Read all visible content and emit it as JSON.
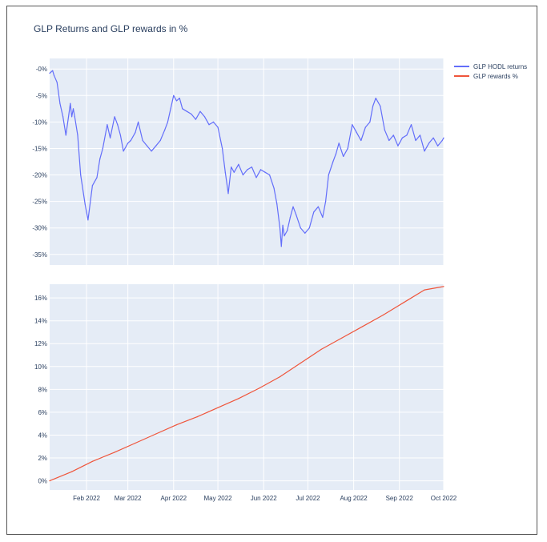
{
  "colors": {
    "background": "#ffffff",
    "plot_bg": "#e5ecf6",
    "grid": "#ffffff",
    "text": "#2a3f5f",
    "hodl_line": "#636efa",
    "rewards_line": "#ef553b"
  },
  "chart_data": {
    "type": "line",
    "title": "GLP Returns and GLP rewards in %",
    "legend_placement": "top-right",
    "grid": true,
    "x_ticks": [
      "Feb 2022",
      "Mar 2022",
      "Apr 2022",
      "May 2022",
      "Jun 2022",
      "Jul 2022",
      "Aug 2022",
      "Sep 2022",
      "Oct 2022"
    ],
    "x_range": [
      "2022-01-07",
      "2022-10-01"
    ],
    "legend": [
      {
        "label": "GLP HODL returns",
        "color": "#636efa"
      },
      {
        "label": "GLP rewards %",
        "color": "#ef553b"
      }
    ],
    "subplots": [
      {
        "name": "GLP HODL returns",
        "y_ticks": [
          "-0%",
          "-5%",
          "-10%",
          "-15%",
          "-20%",
          "-25%",
          "-30%",
          "-35%"
        ],
        "y_tick_values": [
          0,
          -5,
          -10,
          -15,
          -20,
          -25,
          -30,
          -35
        ],
        "ylim": [
          -37,
          2
        ],
        "series": [
          {
            "name": "GLP HODL returns",
            "color": "#636efa",
            "x": [
              "2022-01-07",
              "2022-01-09",
              "2022-01-10",
              "2022-01-12",
              "2022-01-14",
              "2022-01-16",
              "2022-01-18",
              "2022-01-20",
              "2022-01-21",
              "2022-01-22",
              "2022-01-23",
              "2022-01-24",
              "2022-01-26",
              "2022-01-28",
              "2022-01-31",
              "2022-02-02",
              "2022-02-05",
              "2022-02-08",
              "2022-02-10",
              "2022-02-12",
              "2022-02-15",
              "2022-02-17",
              "2022-02-20",
              "2022-02-22",
              "2022-02-24",
              "2022-02-26",
              "2022-03-01",
              "2022-03-03",
              "2022-03-06",
              "2022-03-08",
              "2022-03-11",
              "2022-03-14",
              "2022-03-17",
              "2022-03-20",
              "2022-03-23",
              "2022-03-26",
              "2022-03-28",
              "2022-03-30",
              "2022-04-01",
              "2022-04-03",
              "2022-04-05",
              "2022-04-07",
              "2022-04-10",
              "2022-04-13",
              "2022-04-16",
              "2022-04-19",
              "2022-04-22",
              "2022-04-25",
              "2022-04-28",
              "2022-05-01",
              "2022-05-04",
              "2022-05-06",
              "2022-05-08",
              "2022-05-10",
              "2022-05-12",
              "2022-05-15",
              "2022-05-18",
              "2022-05-21",
              "2022-05-24",
              "2022-05-27",
              "2022-05-30",
              "2022-06-02",
              "2022-06-05",
              "2022-06-08",
              "2022-06-10",
              "2022-06-12",
              "2022-06-13",
              "2022-06-14",
              "2022-06-15",
              "2022-06-17",
              "2022-06-19",
              "2022-06-21",
              "2022-06-23",
              "2022-06-26",
              "2022-06-29",
              "2022-07-02",
              "2022-07-05",
              "2022-07-08",
              "2022-07-11",
              "2022-07-13",
              "2022-07-15",
              "2022-07-18",
              "2022-07-20",
              "2022-07-22",
              "2022-07-25",
              "2022-07-28",
              "2022-07-31",
              "2022-08-03",
              "2022-08-06",
              "2022-08-09",
              "2022-08-12",
              "2022-08-14",
              "2022-08-16",
              "2022-08-19",
              "2022-08-22",
              "2022-08-25",
              "2022-08-28",
              "2022-08-31",
              "2022-09-03",
              "2022-09-06",
              "2022-09-09",
              "2022-09-12",
              "2022-09-15",
              "2022-09-18",
              "2022-09-21",
              "2022-09-24",
              "2022-09-27",
              "2022-09-30",
              "2022-10-01"
            ],
            "values": [
              -0.8,
              -0.3,
              -1.2,
              -2.5,
              -6.5,
              -9.0,
              -12.5,
              -8.5,
              -6.5,
              -9.0,
              -7.5,
              -9.0,
              -12.5,
              -20.0,
              -25.5,
              -28.5,
              -22.0,
              -20.5,
              -17.0,
              -15.0,
              -10.5,
              -13.0,
              -9.0,
              -10.5,
              -12.5,
              -15.5,
              -14.0,
              -13.5,
              -12.0,
              -10.0,
              -13.5,
              -14.5,
              -15.5,
              -14.5,
              -13.5,
              -11.5,
              -10.0,
              -7.5,
              -5.0,
              -6.0,
              -5.5,
              -7.5,
              -8.0,
              -8.5,
              -9.5,
              -8.0,
              -9.0,
              -10.5,
              -10.0,
              -11.0,
              -15.0,
              -19.5,
              -23.5,
              -18.5,
              -19.5,
              -18.0,
              -20.0,
              -19.0,
              -18.5,
              -20.5,
              -19.0,
              -19.5,
              -20.0,
              -22.5,
              -25.5,
              -30.0,
              -33.5,
              -29.5,
              -31.5,
              -30.5,
              -28.0,
              -26.0,
              -27.5,
              -30.0,
              -31.0,
              -30.0,
              -27.0,
              -26.0,
              -28.0,
              -25.0,
              -20.0,
              -17.5,
              -16.0,
              -14.0,
              -16.5,
              -15.0,
              -10.5,
              -12.0,
              -13.5,
              -11.0,
              -10.0,
              -7.0,
              -5.5,
              -7.0,
              -11.5,
              -13.5,
              -12.5,
              -14.5,
              -13.0,
              -12.5,
              -10.5,
              -13.5,
              -12.5,
              -15.5,
              -14.0,
              -13.0,
              -14.5,
              -13.5,
              -13.0
            ]
          }
        ]
      },
      {
        "name": "GLP rewards %",
        "y_ticks": [
          "0%",
          "2%",
          "4%",
          "6%",
          "8%",
          "10%",
          "12%",
          "14%",
          "16%"
        ],
        "y_tick_values": [
          0,
          2,
          4,
          6,
          8,
          10,
          12,
          14,
          16
        ],
        "ylim": [
          -0.8,
          17.2
        ],
        "series": [
          {
            "name": "GLP rewards %",
            "color": "#ef553b",
            "x": [
              "2022-01-07",
              "2022-01-22",
              "2022-02-05",
              "2022-02-20",
              "2022-03-06",
              "2022-03-20",
              "2022-04-03",
              "2022-04-17",
              "2022-05-01",
              "2022-05-15",
              "2022-05-29",
              "2022-06-12",
              "2022-06-26",
              "2022-07-10",
              "2022-07-24",
              "2022-08-07",
              "2022-08-21",
              "2022-09-04",
              "2022-09-18",
              "2022-10-01"
            ],
            "values": [
              0.0,
              0.8,
              1.7,
              2.5,
              3.3,
              4.1,
              4.9,
              5.6,
              6.4,
              7.2,
              8.1,
              9.1,
              10.3,
              11.5,
              12.5,
              13.5,
              14.5,
              15.6,
              16.7,
              17.0
            ]
          }
        ]
      }
    ]
  }
}
